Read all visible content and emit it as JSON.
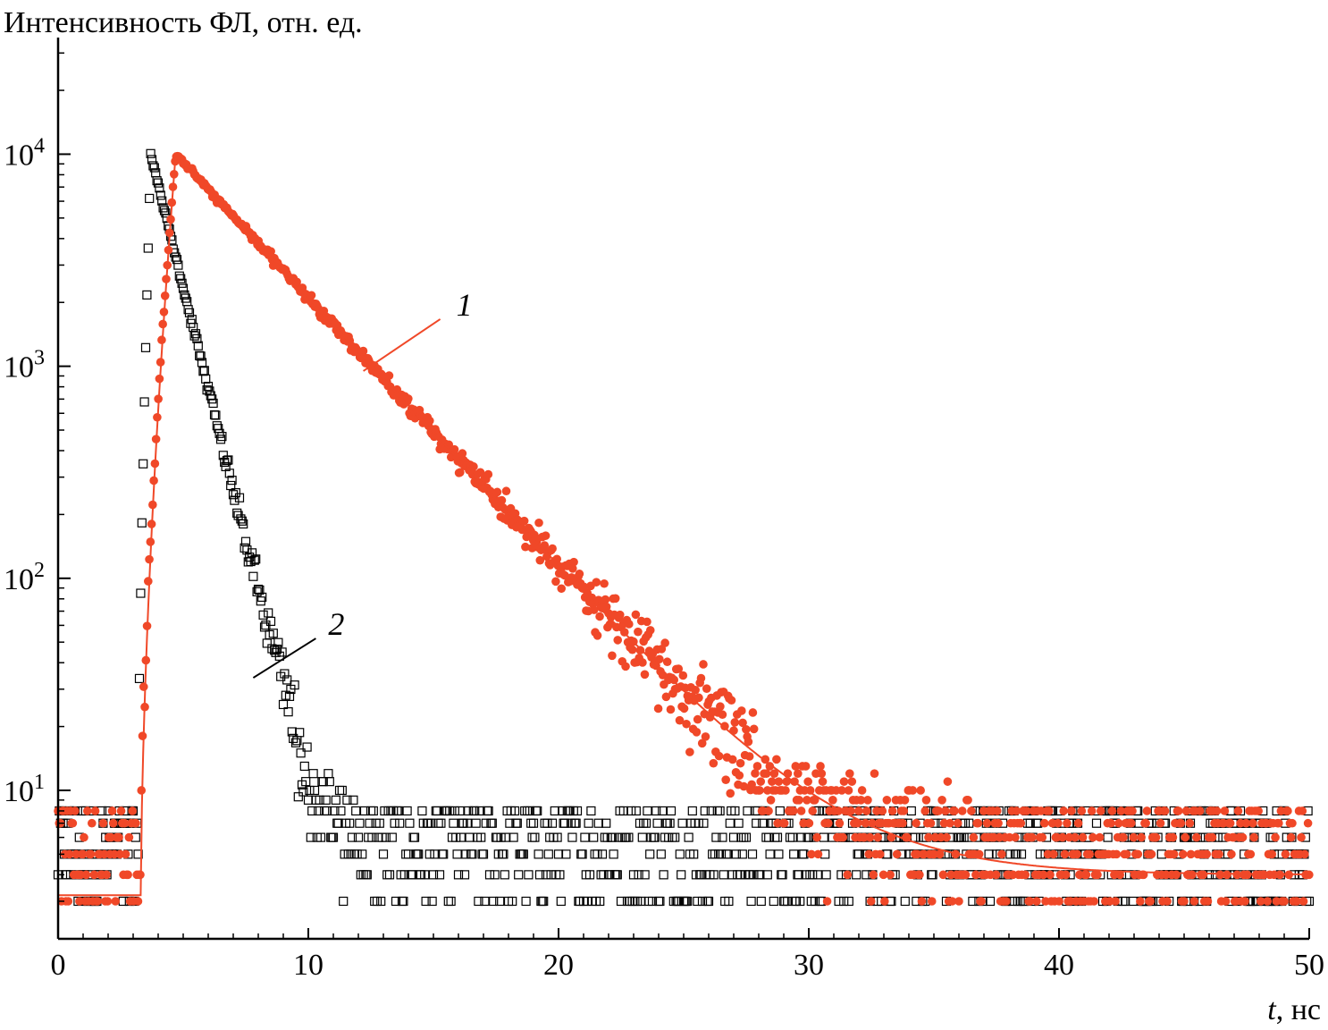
{
  "chart_data": {
    "type": "scatter",
    "ylabel": "Интенсивность ФЛ, отн. ед.",
    "xlabel_var": "t",
    "xlabel_unit": ", нс",
    "xlim": [
      0,
      50
    ],
    "ylim_log10": [
      0.3,
      4.55
    ],
    "yscale": "log",
    "x_ticks": [
      0,
      10,
      20,
      30,
      40,
      50
    ],
    "x_tick_labels": [
      "0",
      "10",
      "20",
      "30",
      "40",
      "50"
    ],
    "y_ticks": [
      {
        "base": "10",
        "exp": "1",
        "value": 10
      },
      {
        "base": "10",
        "exp": "2",
        "value": 100
      },
      {
        "base": "10",
        "exp": "3",
        "value": 1000
      },
      {
        "base": "10",
        "exp": "4",
        "value": 10000
      }
    ],
    "grid": false,
    "colors": {
      "series1": "#f04828",
      "series2": "#000000"
    },
    "series": [
      {
        "id": "1",
        "label": "1",
        "marker": "filled-circle",
        "rise_start": 3.3,
        "peak_x": 4.7,
        "peak_y": 10000,
        "decay_tau": 3.4,
        "baseline": 4,
        "fit": true
      },
      {
        "id": "2",
        "label": "2",
        "marker": "open-square",
        "rise_start": 3.2,
        "peak_x": 3.7,
        "peak_y": 10000,
        "decay_tau": 0.9,
        "baseline": 4,
        "fit": false
      }
    ],
    "annotations": [
      {
        "text": "1",
        "series": "1",
        "at_x": 12.2,
        "at_y": 950
      },
      {
        "text": "2",
        "series": "2",
        "at_x": 7.8,
        "at_y": 36
      }
    ]
  }
}
